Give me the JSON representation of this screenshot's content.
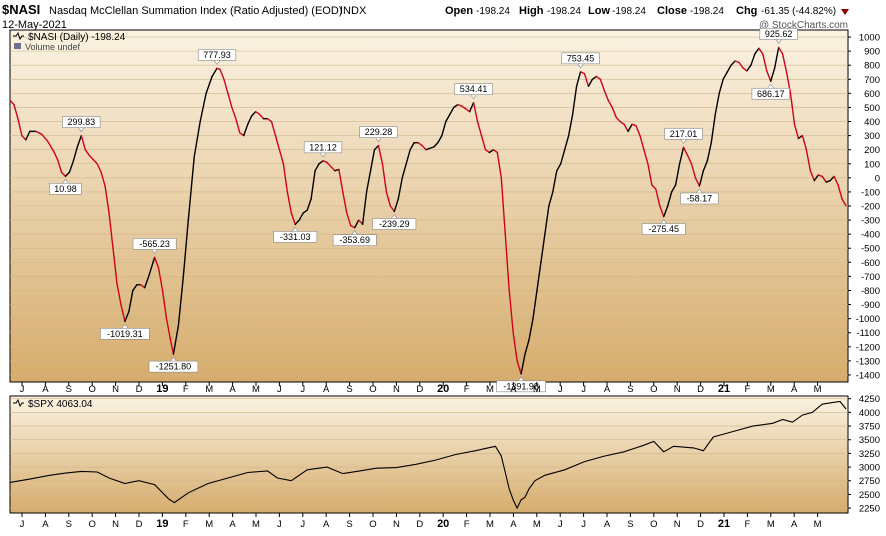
{
  "header": {
    "symbol": "$NASI",
    "name": "Nasdaq McClellan Summation Index (Ratio Adjusted) (EOD)",
    "exchange": "INDX",
    "date": "12-May-2021",
    "watermark": "@ StockCharts.com",
    "quote": {
      "open_label": "Open",
      "open": "-198.24",
      "high_label": "High",
      "high": "-198.24",
      "low_label": "Low",
      "low": "-198.24",
      "close_label": "Close",
      "close": "-198.24",
      "chg_label": "Chg",
      "chg": "-61.35 (-44.82%)"
    }
  },
  "colors": {
    "panel_top": "#fbf3e3",
    "panel_bottom": "#d6ac6c",
    "grid": "#cfb68a",
    "rising": "#000000",
    "falling": "#d0021b",
    "change_marker": "#8b0000"
  },
  "chart_data": [
    {
      "type": "line",
      "name": "NASI",
      "legend": "$NASI (Daily) -198.24",
      "sublegend": "Volume undef",
      "ylim": [
        -1450,
        1050
      ],
      "ytick_labels": [
        "1000",
        "900",
        "800",
        "700",
        "600",
        "500",
        "400",
        "300",
        "200",
        "100",
        "0",
        "-100",
        "-200",
        "-300",
        "-400",
        "-500",
        "-600",
        "-700",
        "-800",
        "-900",
        "-1000",
        "-1100",
        "-1200",
        "-1300",
        "-1400"
      ],
      "xlabels": [
        "J",
        "A",
        "S",
        "O",
        "N",
        "D",
        "19",
        "F",
        "M",
        "A",
        "M",
        "J",
        "J",
        "A",
        "S",
        "O",
        "N",
        "D",
        "20",
        "F",
        "M",
        "A",
        "M",
        "J",
        "J",
        "A",
        "S",
        "O",
        "N",
        "D",
        "21",
        "F",
        "M",
        "A",
        "M"
      ],
      "xlabel_bold": [
        "19",
        "20",
        "21"
      ],
      "coloring": "black when rising, red when falling",
      "points": [
        [
          0,
          550
        ],
        [
          4,
          520
        ],
        [
          8,
          420
        ],
        [
          12,
          300
        ],
        [
          16,
          270
        ],
        [
          20,
          330
        ],
        [
          26,
          330
        ],
        [
          32,
          310
        ],
        [
          38,
          260
        ],
        [
          44,
          190
        ],
        [
          48,
          130
        ],
        [
          52,
          40
        ],
        [
          56,
          11
        ],
        [
          60,
          40
        ],
        [
          64,
          120
        ],
        [
          68,
          220
        ],
        [
          72,
          300
        ],
        [
          76,
          200
        ],
        [
          80,
          160
        ],
        [
          84,
          130
        ],
        [
          88,
          100
        ],
        [
          92,
          40
        ],
        [
          96,
          -60
        ],
        [
          100,
          -250
        ],
        [
          104,
          -500
        ],
        [
          108,
          -750
        ],
        [
          112,
          -900
        ],
        [
          116,
          -1019
        ],
        [
          120,
          -950
        ],
        [
          124,
          -800
        ],
        [
          128,
          -760
        ],
        [
          132,
          -760
        ],
        [
          136,
          -780
        ],
        [
          140,
          -700
        ],
        [
          146,
          -565
        ],
        [
          150,
          -640
        ],
        [
          154,
          -800
        ],
        [
          158,
          -1000
        ],
        [
          162,
          -1150
        ],
        [
          165,
          -1252
        ],
        [
          170,
          -1050
        ],
        [
          175,
          -700
        ],
        [
          180,
          -300
        ],
        [
          186,
          150
        ],
        [
          192,
          400
        ],
        [
          198,
          600
        ],
        [
          204,
          720
        ],
        [
          209,
          778
        ],
        [
          212,
          770
        ],
        [
          216,
          700
        ],
        [
          220,
          600
        ],
        [
          224,
          500
        ],
        [
          228,
          420
        ],
        [
          232,
          320
        ],
        [
          236,
          300
        ],
        [
          240,
          380
        ],
        [
          244,
          440
        ],
        [
          248,
          470
        ],
        [
          252,
          450
        ],
        [
          256,
          420
        ],
        [
          260,
          420
        ],
        [
          264,
          400
        ],
        [
          268,
          300
        ],
        [
          272,
          200
        ],
        [
          276,
          100
        ],
        [
          280,
          -100
        ],
        [
          284,
          -250
        ],
        [
          288,
          -331
        ],
        [
          292,
          -300
        ],
        [
          296,
          -250
        ],
        [
          300,
          -230
        ],
        [
          304,
          -150
        ],
        [
          308,
          50
        ],
        [
          312,
          100
        ],
        [
          316,
          121
        ],
        [
          320,
          110
        ],
        [
          324,
          80
        ],
        [
          328,
          50
        ],
        [
          332,
          60
        ],
        [
          336,
          -100
        ],
        [
          340,
          -250
        ],
        [
          344,
          -340
        ],
        [
          348,
          -354
        ],
        [
          352,
          -300
        ],
        [
          356,
          -330
        ],
        [
          360,
          -100
        ],
        [
          364,
          50
        ],
        [
          368,
          200
        ],
        [
          372,
          229
        ],
        [
          376,
          100
        ],
        [
          380,
          -100
        ],
        [
          384,
          -200
        ],
        [
          388,
          -239
        ],
        [
          392,
          -150
        ],
        [
          396,
          0
        ],
        [
          400,
          100
        ],
        [
          404,
          200
        ],
        [
          408,
          250
        ],
        [
          412,
          250
        ],
        [
          416,
          230
        ],
        [
          420,
          200
        ],
        [
          424,
          210
        ],
        [
          428,
          220
        ],
        [
          432,
          250
        ],
        [
          436,
          300
        ],
        [
          440,
          400
        ],
        [
          444,
          450
        ],
        [
          448,
          500
        ],
        [
          452,
          520
        ],
        [
          456,
          510
        ],
        [
          460,
          490
        ],
        [
          464,
          470
        ],
        [
          468,
          534
        ],
        [
          472,
          400
        ],
        [
          476,
          300
        ],
        [
          480,
          200
        ],
        [
          484,
          180
        ],
        [
          488,
          200
        ],
        [
          492,
          180
        ],
        [
          496,
          0
        ],
        [
          500,
          -400
        ],
        [
          504,
          -800
        ],
        [
          508,
          -1100
        ],
        [
          512,
          -1300
        ],
        [
          516,
          -1392
        ],
        [
          520,
          -1250
        ],
        [
          524,
          -1150
        ],
        [
          528,
          -1000
        ],
        [
          532,
          -800
        ],
        [
          536,
          -600
        ],
        [
          540,
          -400
        ],
        [
          544,
          -200
        ],
        [
          548,
          -100
        ],
        [
          552,
          50
        ],
        [
          556,
          100
        ],
        [
          560,
          200
        ],
        [
          564,
          300
        ],
        [
          568,
          450
        ],
        [
          572,
          650
        ],
        [
          576,
          753
        ],
        [
          580,
          740
        ],
        [
          584,
          650
        ],
        [
          588,
          700
        ],
        [
          592,
          720
        ],
        [
          596,
          700
        ],
        [
          600,
          620
        ],
        [
          604,
          550
        ],
        [
          608,
          500
        ],
        [
          612,
          430
        ],
        [
          616,
          400
        ],
        [
          620,
          380
        ],
        [
          624,
          330
        ],
        [
          628,
          380
        ],
        [
          632,
          370
        ],
        [
          636,
          300
        ],
        [
          640,
          200
        ],
        [
          644,
          100
        ],
        [
          648,
          -50
        ],
        [
          652,
          -80
        ],
        [
          656,
          -200
        ],
        [
          660,
          -275
        ],
        [
          664,
          -200
        ],
        [
          668,
          -100
        ],
        [
          672,
          -50
        ],
        [
          676,
          100
        ],
        [
          680,
          217
        ],
        [
          684,
          160
        ],
        [
          688,
          100
        ],
        [
          692,
          0
        ],
        [
          696,
          -58
        ],
        [
          700,
          50
        ],
        [
          704,
          120
        ],
        [
          708,
          250
        ],
        [
          712,
          450
        ],
        [
          716,
          600
        ],
        [
          720,
          700
        ],
        [
          724,
          750
        ],
        [
          728,
          800
        ],
        [
          732,
          830
        ],
        [
          736,
          820
        ],
        [
          740,
          780
        ],
        [
          744,
          760
        ],
        [
          748,
          800
        ],
        [
          752,
          880
        ],
        [
          756,
          920
        ],
        [
          760,
          880
        ],
        [
          764,
          760
        ],
        [
          768,
          686
        ],
        [
          772,
          780
        ],
        [
          776,
          926
        ],
        [
          780,
          880
        ],
        [
          784,
          750
        ],
        [
          788,
          600
        ],
        [
          792,
          380
        ],
        [
          796,
          280
        ],
        [
          800,
          300
        ],
        [
          804,
          200
        ],
        [
          808,
          50
        ],
        [
          812,
          -20
        ],
        [
          816,
          20
        ],
        [
          820,
          10
        ],
        [
          824,
          -30
        ],
        [
          828,
          -20
        ],
        [
          832,
          10
        ],
        [
          836,
          -50
        ],
        [
          840,
          -150
        ],
        [
          844,
          -198
        ]
      ],
      "annotations": [
        {
          "x": 56,
          "y": 11,
          "label": "10.98",
          "position": "below"
        },
        {
          "x": 72,
          "y": 300,
          "label": "299.83",
          "position": "above"
        },
        {
          "x": 116,
          "y": -1019,
          "label": "-1019.31",
          "position": "below"
        },
        {
          "x": 146,
          "y": -565,
          "label": "-565.23",
          "position": "above"
        },
        {
          "x": 165,
          "y": -1252,
          "label": "-1251.80",
          "position": "below"
        },
        {
          "x": 209,
          "y": 778,
          "label": "777.93",
          "position": "above"
        },
        {
          "x": 288,
          "y": -331,
          "label": "-331.03",
          "position": "below"
        },
        {
          "x": 316,
          "y": 121,
          "label": "121.12",
          "position": "above"
        },
        {
          "x": 348,
          "y": -354,
          "label": "-353.69",
          "position": "below"
        },
        {
          "x": 372,
          "y": 229,
          "label": "229.28",
          "position": "above"
        },
        {
          "x": 388,
          "y": -239,
          "label": "-239.29",
          "position": "below"
        },
        {
          "x": 468,
          "y": 534,
          "label": "534.41",
          "position": "above"
        },
        {
          "x": 516,
          "y": -1392,
          "label": "-1391.98",
          "position": "below"
        },
        {
          "x": 576,
          "y": 753,
          "label": "753.45",
          "position": "above"
        },
        {
          "x": 660,
          "y": -275,
          "label": "-275.45",
          "position": "below"
        },
        {
          "x": 680,
          "y": 217,
          "label": "217.01",
          "position": "above"
        },
        {
          "x": 696,
          "y": -58,
          "label": "-58.17",
          "position": "below"
        },
        {
          "x": 768,
          "y": 686,
          "label": "686.17",
          "position": "below"
        },
        {
          "x": 776,
          "y": 926,
          "label": "925.62",
          "position": "above"
        }
      ]
    },
    {
      "type": "line",
      "name": "SPX",
      "legend": "$SPX 4063.04",
      "ylim": [
        2160,
        4300
      ],
      "ytick_labels": [
        "4250",
        "4000",
        "3750",
        "3500",
        "3250",
        "3000",
        "2750",
        "2500",
        "2250"
      ],
      "xlabels": [
        "J",
        "A",
        "S",
        "O",
        "N",
        "D",
        "19",
        "F",
        "M",
        "A",
        "M",
        "J",
        "J",
        "A",
        "S",
        "O",
        "N",
        "D",
        "20",
        "F",
        "M",
        "A",
        "M",
        "J",
        "J",
        "A",
        "S",
        "O",
        "N",
        "D",
        "21",
        "F",
        "M",
        "A",
        "M"
      ],
      "xlabel_bold": [
        "19",
        "20",
        "21"
      ],
      "points": [
        [
          0,
          2720
        ],
        [
          20,
          2780
        ],
        [
          40,
          2850
        ],
        [
          56,
          2890
        ],
        [
          72,
          2920
        ],
        [
          88,
          2910
        ],
        [
          100,
          2800
        ],
        [
          116,
          2700
        ],
        [
          130,
          2750
        ],
        [
          146,
          2680
        ],
        [
          160,
          2420
        ],
        [
          166,
          2350
        ],
        [
          180,
          2530
        ],
        [
          200,
          2700
        ],
        [
          220,
          2800
        ],
        [
          240,
          2900
        ],
        [
          260,
          2930
        ],
        [
          270,
          2800
        ],
        [
          284,
          2750
        ],
        [
          300,
          2950
        ],
        [
          320,
          3000
        ],
        [
          336,
          2880
        ],
        [
          350,
          2920
        ],
        [
          370,
          2980
        ],
        [
          390,
          2990
        ],
        [
          410,
          3050
        ],
        [
          430,
          3130
        ],
        [
          450,
          3230
        ],
        [
          470,
          3300
        ],
        [
          490,
          3380
        ],
        [
          496,
          3200
        ],
        [
          500,
          2900
        ],
        [
          504,
          2600
        ],
        [
          508,
          2400
        ],
        [
          512,
          2250
        ],
        [
          516,
          2400
        ],
        [
          520,
          2450
        ],
        [
          524,
          2600
        ],
        [
          530,
          2750
        ],
        [
          540,
          2850
        ],
        [
          560,
          2950
        ],
        [
          580,
          3100
        ],
        [
          600,
          3200
        ],
        [
          620,
          3280
        ],
        [
          640,
          3400
        ],
        [
          650,
          3470
        ],
        [
          660,
          3280
        ],
        [
          670,
          3380
        ],
        [
          690,
          3350
        ],
        [
          700,
          3300
        ],
        [
          710,
          3550
        ],
        [
          730,
          3650
        ],
        [
          750,
          3750
        ],
        [
          770,
          3800
        ],
        [
          780,
          3870
        ],
        [
          790,
          3820
        ],
        [
          800,
          3950
        ],
        [
          810,
          4000
        ],
        [
          820,
          4150
        ],
        [
          830,
          4180
        ],
        [
          838,
          4200
        ],
        [
          844,
          4063
        ]
      ]
    }
  ]
}
